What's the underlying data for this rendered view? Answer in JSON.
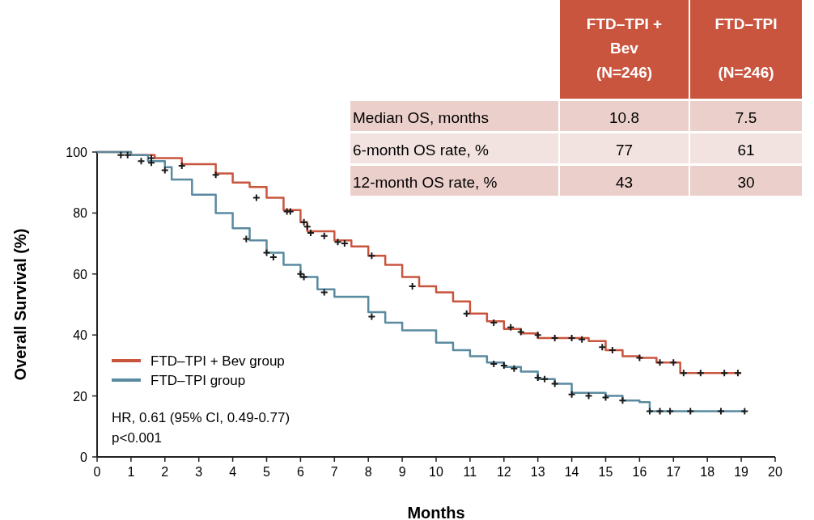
{
  "chart_data": {
    "type": "step",
    "xlabel": "Months",
    "ylabel": "Overall Survival (%)",
    "xlim": [
      0,
      20
    ],
    "xticks": [
      0,
      1,
      2,
      3,
      4,
      5,
      6,
      7,
      8,
      9,
      10,
      11,
      12,
      13,
      14,
      15,
      16,
      17,
      18,
      19,
      20
    ],
    "ylim": [
      0,
      100
    ],
    "yticks": [
      0,
      20,
      40,
      60,
      80,
      100
    ],
    "legend": "bottom left",
    "grid": false,
    "series": [
      {
        "name": "FTD–TPI + Bev group",
        "color": "#c9553f",
        "x": [
          0,
          1,
          1.7,
          2.5,
          3.5,
          4,
          4.5,
          5,
          5.5,
          6,
          6.2,
          7,
          7.5,
          8,
          8.5,
          9,
          9.5,
          10,
          10.5,
          11,
          11.5,
          12,
          12.5,
          13,
          14,
          14.5,
          15,
          15.5,
          16,
          16.5,
          17.2,
          19
        ],
        "values": [
          100,
          99,
          98,
          96,
          93,
          90,
          88.5,
          85,
          81,
          77,
          74,
          71,
          69,
          66,
          63,
          59,
          56,
          54,
          51,
          47,
          44.5,
          42,
          40.5,
          39,
          39,
          38,
          35,
          33,
          32.5,
          31,
          27.5,
          27.5
        ]
      },
      {
        "name": "FTD–TPI group",
        "color": "#5a8aa0",
        "x": [
          0,
          1,
          1.5,
          2,
          2.2,
          2.8,
          3.5,
          4,
          4.5,
          5,
          5.5,
          6,
          6.5,
          7,
          8,
          8.5,
          9,
          10,
          10.5,
          11,
          11.5,
          12,
          12.5,
          13,
          13.5,
          14,
          15,
          15.5,
          16,
          16.3,
          19.1
        ],
        "values": [
          100,
          99,
          97,
          95,
          91,
          86,
          80,
          75,
          71,
          67,
          63,
          59,
          55,
          52.5,
          47.5,
          44,
          41.5,
          37.5,
          35,
          33,
          31,
          29.5,
          28,
          25.5,
          24,
          21,
          20,
          18.5,
          18,
          15,
          15
        ]
      },
      {
        "type": "scatter",
        "marker": "cross",
        "color": "#1a1a1a",
        "x": [
          0.7,
          0.9,
          1.6,
          2.5,
          3.5,
          4.7,
          5.6,
          5.7,
          6.1,
          6.2,
          6.3,
          6.7,
          7.1,
          7.3,
          8.1,
          9.3,
          10.9,
          11.7,
          12.2,
          12.5,
          13,
          13.5,
          14,
          14.3,
          14.9,
          15.2,
          16,
          16.6,
          17,
          17.3,
          17.8,
          18.5,
          18.9
        ],
        "values": [
          99,
          99,
          98,
          95.5,
          92.5,
          85,
          80.5,
          80.5,
          77,
          75.5,
          73.5,
          72.5,
          70.5,
          70,
          66,
          56,
          47,
          44,
          42.5,
          41,
          40,
          39,
          39,
          38.5,
          36,
          35,
          32.5,
          31,
          31,
          27.5,
          27.5,
          27.5,
          27.5
        ]
      },
      {
        "type": "scatter",
        "marker": "cross",
        "color": "#1a1a1a",
        "x": [
          1.3,
          1.6,
          2.0,
          4.4,
          5,
          5.2,
          6,
          6.1,
          6.7,
          8.1,
          11.7,
          12,
          12.3,
          13,
          13.2,
          13.5,
          14,
          14.5,
          15,
          15.5,
          16.3,
          16.6,
          16.9,
          17.5,
          18.4,
          19.1
        ],
        "values": [
          97,
          96.5,
          94,
          71.5,
          67,
          65.5,
          60,
          59,
          54,
          46,
          30.5,
          30,
          29,
          26,
          25.5,
          24,
          20.5,
          20,
          19.5,
          18.5,
          15,
          15,
          15,
          15,
          15,
          15
        ]
      }
    ],
    "annotations": [
      "HR, 0.61 (95% CI, 0.49-0.77)",
      "p<0.001",
      "FTD–TPI +\nBev\n(N=246)",
      "FTD–TPI\n\n(N=246)",
      "Median OS, months",
      "10.8",
      "7.5",
      "6-month OS rate, %",
      "77",
      "61",
      "12-month OS rate, %",
      "43",
      "30"
    ]
  }
}
